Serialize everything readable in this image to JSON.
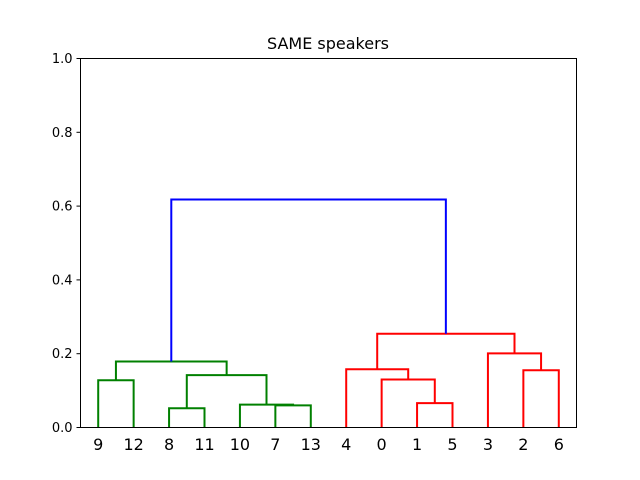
{
  "chart_data": {
    "type": "dendrogram",
    "title": "SAME speakers",
    "xlabel": "",
    "ylabel": "",
    "ylim": [
      0,
      1.0
    ],
    "yticks": [
      "0.0",
      "0.2",
      "0.4",
      "0.6",
      "0.8",
      "1.0"
    ],
    "grid": false,
    "leaves": [
      "9",
      "12",
      "8",
      "11",
      "10",
      "7",
      "13",
      "4",
      "0",
      "1",
      "5",
      "3",
      "2",
      "6"
    ],
    "links": [
      {
        "color": "#008000",
        "dcoord": [
          0.0,
          0.128,
          0.128,
          0.0
        ],
        "icoord": [
          0,
          0,
          1,
          1
        ]
      },
      {
        "color": "#008000",
        "dcoord": [
          0.0,
          0.052,
          0.052,
          0.0
        ],
        "icoord": [
          2,
          2,
          3,
          3
        ]
      },
      {
        "color": "#008000",
        "dcoord": [
          0.0,
          0.06,
          0.06,
          0.0
        ],
        "icoord": [
          5,
          5,
          6,
          6
        ]
      },
      {
        "color": "#008000",
        "dcoord": [
          0.0,
          0.062,
          0.062,
          0.06
        ],
        "icoord": [
          4,
          4,
          5.5,
          5.5
        ]
      },
      {
        "color": "#008000",
        "dcoord": [
          0.052,
          0.142,
          0.142,
          0.062
        ],
        "icoord": [
          2.5,
          2.5,
          4.75,
          4.75
        ]
      },
      {
        "color": "#008000",
        "dcoord": [
          0.128,
          0.179,
          0.179,
          0.142
        ],
        "icoord": [
          0.5,
          0.5,
          3.625,
          3.625
        ]
      },
      {
        "color": "#ff0000",
        "dcoord": [
          0.0,
          0.066,
          0.066,
          0.0
        ],
        "icoord": [
          9,
          9,
          10,
          10
        ]
      },
      {
        "color": "#ff0000",
        "dcoord": [
          0.0,
          0.13,
          0.13,
          0.066
        ],
        "icoord": [
          8,
          8,
          9.5,
          9.5
        ]
      },
      {
        "color": "#ff0000",
        "dcoord": [
          0.0,
          0.158,
          0.158,
          0.13
        ],
        "icoord": [
          7,
          7,
          8.75,
          8.75
        ]
      },
      {
        "color": "#ff0000",
        "dcoord": [
          0.0,
          0.155,
          0.155,
          0.0
        ],
        "icoord": [
          12,
          12,
          13,
          13
        ]
      },
      {
        "color": "#ff0000",
        "dcoord": [
          0.0,
          0.201,
          0.201,
          0.155
        ],
        "icoord": [
          11,
          11,
          12.5,
          12.5
        ]
      },
      {
        "color": "#ff0000",
        "dcoord": [
          0.158,
          0.254,
          0.254,
          0.201
        ],
        "icoord": [
          7.875,
          7.875,
          11.75,
          11.75
        ]
      },
      {
        "color": "#0000ff",
        "dcoord": [
          0.179,
          0.618,
          0.618,
          0.254
        ],
        "icoord": [
          2.0625,
          2.0625,
          9.8125,
          9.8125
        ]
      }
    ],
    "legend": "none"
  }
}
